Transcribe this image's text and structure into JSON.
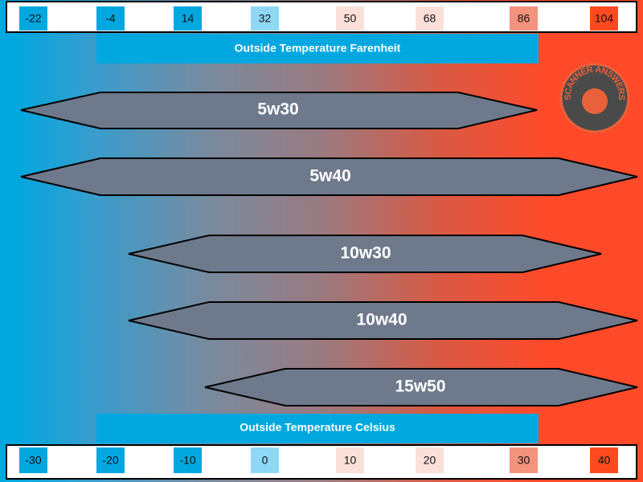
{
  "fahrenheit_scale": {
    "title": "Outside Temperature Farenheit",
    "labels": [
      -22,
      -4,
      14,
      32,
      50,
      68,
      86,
      104
    ]
  },
  "celsius_scale": {
    "title": "Outside Temperature Celsius",
    "labels": [
      -30,
      -20,
      -10,
      0,
      10,
      20,
      30,
      40
    ]
  },
  "oil_grades": [
    "5w30",
    "5w40",
    "10w30",
    "10w40",
    "15w50"
  ],
  "logo": {
    "text": "SCANNER ANSWERS"
  }
}
